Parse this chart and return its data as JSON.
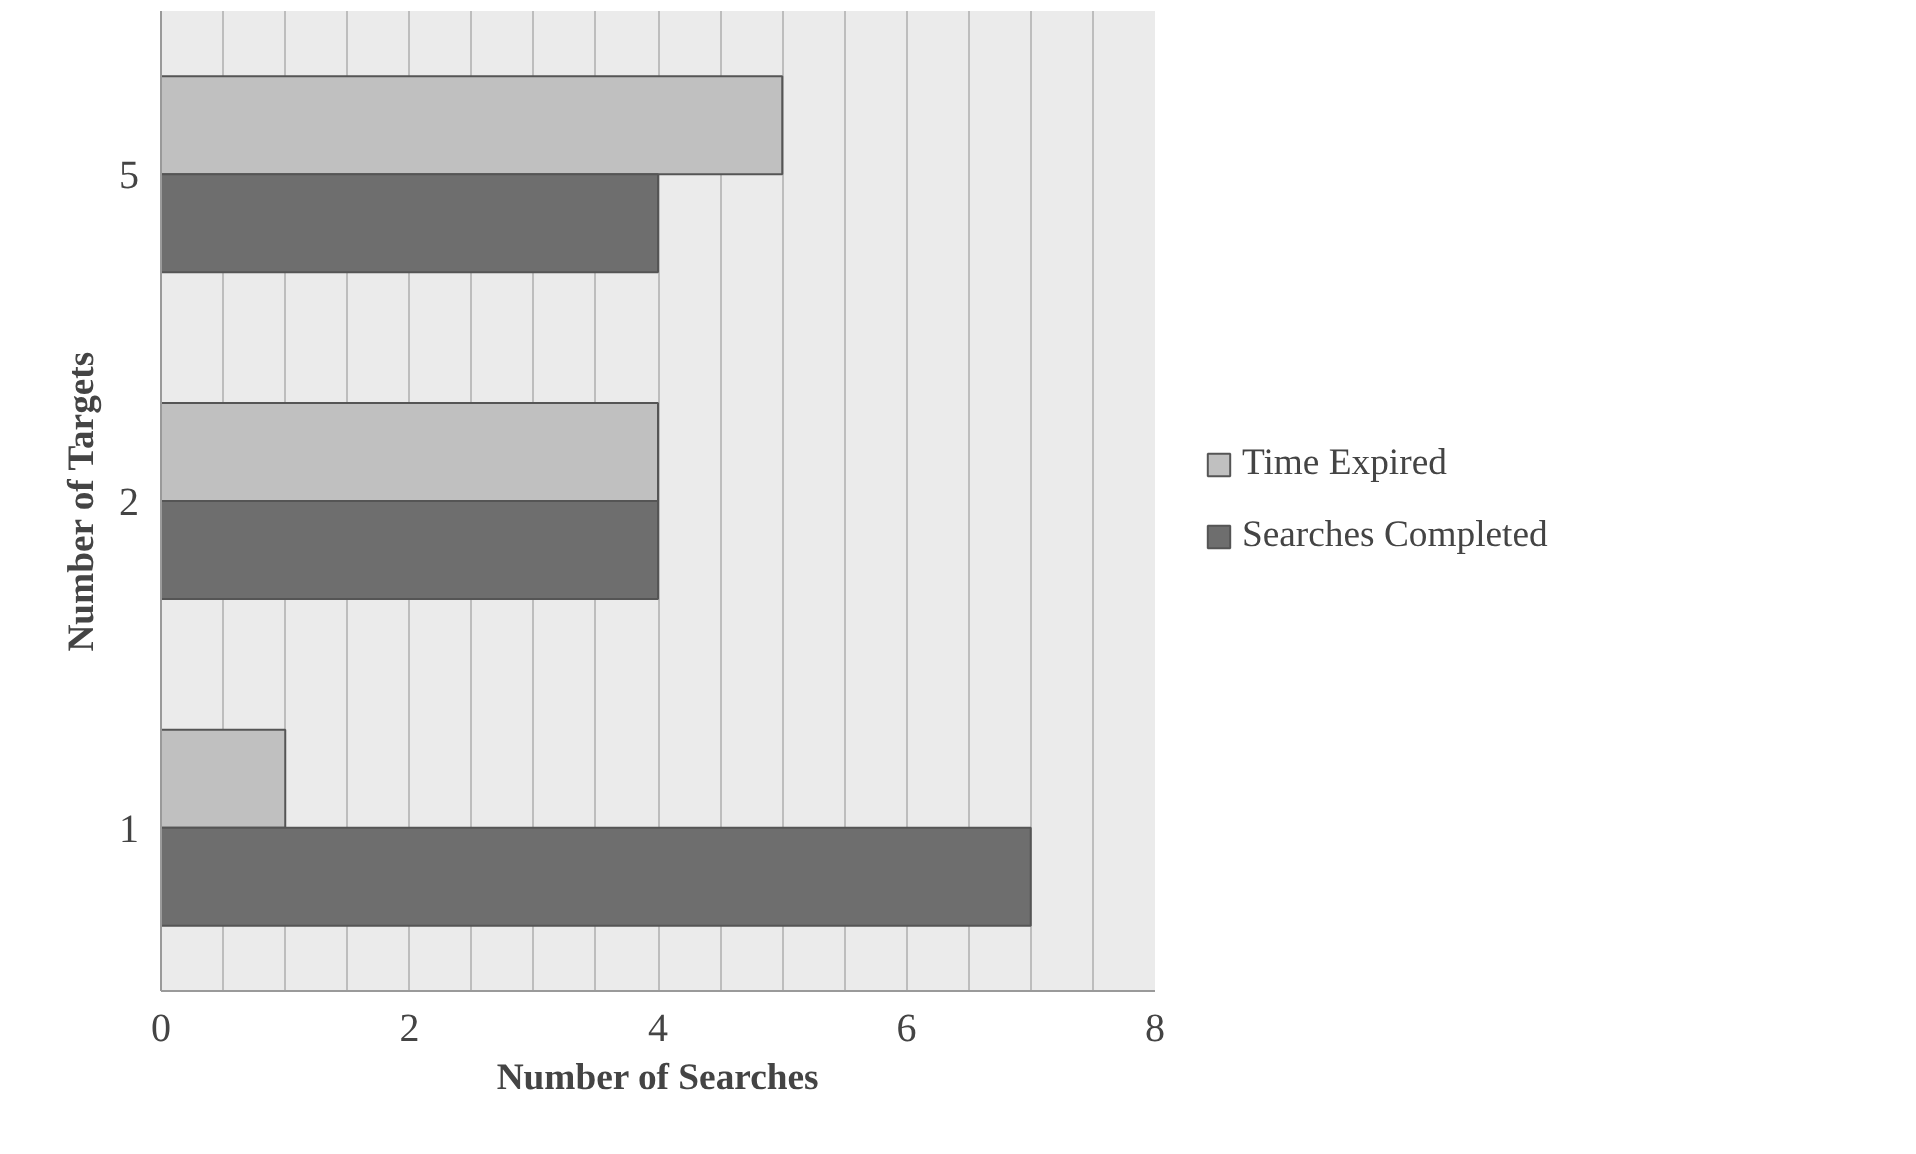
{
  "chart_data": {
    "type": "bar",
    "orientation": "horizontal",
    "xlabel": "Number of Searches",
    "ylabel": "Number of Targets",
    "categories": [
      "5",
      "2",
      "1"
    ],
    "series": [
      {
        "name": "Time Expired",
        "color": "#c0c0c0",
        "values": [
          5,
          4,
          1
        ]
      },
      {
        "name": "Searches Completed",
        "color": "#6e6e6e",
        "values": [
          4,
          4,
          7
        ]
      }
    ],
    "xlim": [
      0,
      8
    ],
    "xticks": [
      0,
      {
        "value": 0.5,
        "label": null
      },
      {
        "value": 1,
        "label": null
      },
      {
        "value": 1.5,
        "label": null
      },
      2,
      {
        "value": 2.5,
        "label": null
      },
      {
        "value": 3,
        "label": null
      },
      {
        "value": 3.5,
        "label": null
      },
      4,
      {
        "value": 4.5,
        "label": null
      },
      {
        "value": 5,
        "label": null
      },
      {
        "value": 5.5,
        "label": null
      },
      6,
      {
        "value": 6.5,
        "label": null
      },
      {
        "value": 7,
        "label": null
      },
      {
        "value": 7.5,
        "label": null
      },
      8
    ],
    "grid": "x",
    "legend": "right"
  }
}
